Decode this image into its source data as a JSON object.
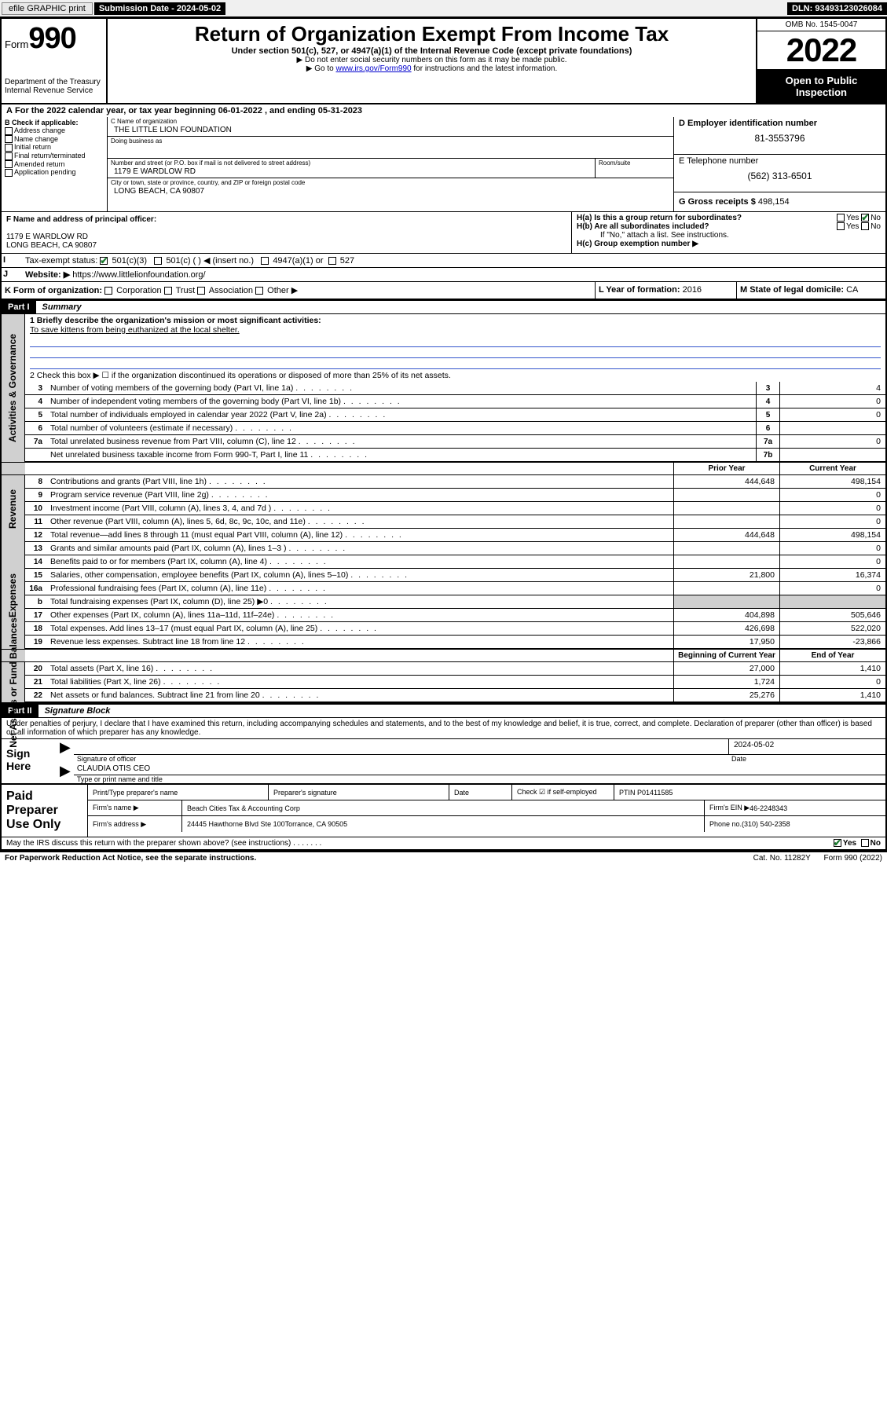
{
  "topbar": {
    "efile_btn": "efile GRAPHIC print",
    "sub_date_label": "Submission Date - 2024-05-02",
    "dln": "DLN: 93493123026084"
  },
  "header": {
    "form_prefix": "Form",
    "form_num": "990",
    "dept": "Department of the Treasury",
    "irs": "Internal Revenue Service",
    "title": "Return of Organization Exempt From Income Tax",
    "sub1": "Under section 501(c), 527, or 4947(a)(1) of the Internal Revenue Code (except private foundations)",
    "sub2": "▶ Do not enter social security numbers on this form as it may be made public.",
    "sub3_pre": "▶ Go to ",
    "sub3_link": "www.irs.gov/Form990",
    "sub3_post": " for instructions and the latest information.",
    "omb": "OMB No. 1545-0047",
    "year": "2022",
    "open": "Open to Public Inspection"
  },
  "period": {
    "text": "For the 2022 calendar year, or tax year beginning 06-01-2022   , and ending 05-31-2023"
  },
  "colB": {
    "label": "B Check if applicable:",
    "opts": [
      "Address change",
      "Name change",
      "Initial return",
      "Final return/terminated",
      "Amended return",
      "Application pending"
    ]
  },
  "colC": {
    "name_label": "C Name of organization",
    "name": "THE LITTLE LION FOUNDATION",
    "dba_label": "Doing business as",
    "dba": "",
    "addr_label": "Number and street (or P.O. box if mail is not delivered to street address)",
    "room_label": "Room/suite",
    "addr": "1179 E WARDLOW RD",
    "city_label": "City or town, state or province, country, and ZIP or foreign postal code",
    "city": "LONG BEACH, CA  90807"
  },
  "colD": {
    "ein_label": "D Employer identification number",
    "ein": "81-3553796",
    "tel_label": "E Telephone number",
    "tel": "(562) 313-6501",
    "gross_label": "G Gross receipts $",
    "gross": "498,154"
  },
  "lineF": {
    "label": "F Name and address of principal officer:",
    "addr1": "1179 E WARDLOW RD",
    "addr2": "LONG BEACH, CA  90807"
  },
  "lineH": {
    "a": "H(a)  Is this a group return for subordinates?",
    "b": "H(b)  Are all subordinates included?",
    "b_note": "If \"No,\" attach a list. See instructions.",
    "c": "H(c)  Group exemption number ▶",
    "yes": "Yes",
    "no": "No"
  },
  "lineI": {
    "label": "Tax-exempt status:",
    "c3": "501(c)(3)",
    "c": "501(c) (  ) ◀ (insert no.)",
    "a1": "4947(a)(1) or",
    "s527": "527"
  },
  "lineJ": {
    "label": "Website: ▶",
    "val": "https://www.littlelionfoundation.org/"
  },
  "lineK": {
    "label": "K Form of organization:",
    "opts": [
      "Corporation",
      "Trust",
      "Association",
      "Other ▶"
    ]
  },
  "lineL": {
    "label": "L Year of formation:",
    "val": "2016"
  },
  "lineM": {
    "label": "M State of legal domicile:",
    "val": "CA"
  },
  "part1": {
    "hdr": "Part I",
    "title": "Summary",
    "q1_label": "1  Briefly describe the organization's mission or most significant activities:",
    "q1_val": "To save kittens from being euthanized at the local shelter.",
    "q2": "2   Check this box ▶ ☐  if the organization discontinued its operations or disposed of more than 25% of its net assets.",
    "rows_gov": [
      {
        "ln": "3",
        "desc": "Number of voting members of the governing body (Part VI, line 1a)",
        "box": "3",
        "v": "4"
      },
      {
        "ln": "4",
        "desc": "Number of independent voting members of the governing body (Part VI, line 1b)",
        "box": "4",
        "v": "0"
      },
      {
        "ln": "5",
        "desc": "Total number of individuals employed in calendar year 2022 (Part V, line 2a)",
        "box": "5",
        "v": "0"
      },
      {
        "ln": "6",
        "desc": "Total number of volunteers (estimate if necessary)",
        "box": "6",
        "v": ""
      },
      {
        "ln": "7a",
        "desc": "Total unrelated business revenue from Part VIII, column (C), line 12",
        "box": "7a",
        "v": "0"
      },
      {
        "ln": "",
        "desc": "Net unrelated business taxable income from Form 990-T, Part I, line 11",
        "box": "7b",
        "v": ""
      }
    ],
    "prior": "Prior Year",
    "current": "Current Year",
    "rows_rev": [
      {
        "ln": "8",
        "desc": "Contributions and grants (Part VIII, line 1h)",
        "p": "444,648",
        "c": "498,154"
      },
      {
        "ln": "9",
        "desc": "Program service revenue (Part VIII, line 2g)",
        "p": "",
        "c": "0"
      },
      {
        "ln": "10",
        "desc": "Investment income (Part VIII, column (A), lines 3, 4, and 7d )",
        "p": "",
        "c": "0"
      },
      {
        "ln": "11",
        "desc": "Other revenue (Part VIII, column (A), lines 5, 6d, 8c, 9c, 10c, and 11e)",
        "p": "",
        "c": "0"
      },
      {
        "ln": "12",
        "desc": "Total revenue—add lines 8 through 11 (must equal Part VIII, column (A), line 12)",
        "p": "444,648",
        "c": "498,154"
      }
    ],
    "rows_exp": [
      {
        "ln": "13",
        "desc": "Grants and similar amounts paid (Part IX, column (A), lines 1–3 )",
        "p": "",
        "c": "0"
      },
      {
        "ln": "14",
        "desc": "Benefits paid to or for members (Part IX, column (A), line 4)",
        "p": "",
        "c": "0"
      },
      {
        "ln": "15",
        "desc": "Salaries, other compensation, employee benefits (Part IX, column (A), lines 5–10)",
        "p": "21,800",
        "c": "16,374"
      },
      {
        "ln": "16a",
        "desc": "Professional fundraising fees (Part IX, column (A), line 11e)",
        "p": "",
        "c": "0"
      },
      {
        "ln": "b",
        "desc": "Total fundraising expenses (Part IX, column (D), line 25) ▶0",
        "p": "grey",
        "c": "grey"
      },
      {
        "ln": "17",
        "desc": "Other expenses (Part IX, column (A), lines 11a–11d, 11f–24e)",
        "p": "404,898",
        "c": "505,646"
      },
      {
        "ln": "18",
        "desc": "Total expenses. Add lines 13–17 (must equal Part IX, column (A), line 25)",
        "p": "426,698",
        "c": "522,020"
      },
      {
        "ln": "19",
        "desc": "Revenue less expenses. Subtract line 18 from line 12",
        "p": "17,950",
        "c": "-23,866"
      }
    ],
    "begin": "Beginning of Current Year",
    "end": "End of Year",
    "rows_net": [
      {
        "ln": "20",
        "desc": "Total assets (Part X, line 16)",
        "p": "27,000",
        "c": "1,410"
      },
      {
        "ln": "21",
        "desc": "Total liabilities (Part X, line 26)",
        "p": "1,724",
        "c": "0"
      },
      {
        "ln": "22",
        "desc": "Net assets or fund balances. Subtract line 21 from line 20",
        "p": "25,276",
        "c": "1,410"
      }
    ],
    "side_gov": "Activities & Governance",
    "side_rev": "Revenue",
    "side_exp": "Expenses",
    "side_net": "Net Assets or Fund Balances"
  },
  "part2": {
    "hdr": "Part II",
    "title": "Signature Block",
    "decl": "Under penalties of perjury, I declare that I have examined this return, including accompanying schedules and statements, and to the best of my knowledge and belief, it is true, correct, and complete. Declaration of preparer (other than officer) is based on all information of which preparer has any knowledge.",
    "sign_here": "Sign Here",
    "sig_officer": "Signature of officer",
    "date_lbl": "Date",
    "date_val": "2024-05-02",
    "name_val": "CLAUDIA OTIS CEO",
    "name_lbl": "Type or print name and title"
  },
  "paid": {
    "hdr": "Paid Preparer Use Only",
    "r1": [
      "Print/Type preparer's name",
      "Preparer's signature",
      "Date",
      "Check ☑ if self-employed",
      "PTIN P01411585"
    ],
    "r2_l": "Firm's name    ▶",
    "r2_v": "Beach Cities Tax & Accounting Corp",
    "r2_ein_l": "Firm's EIN ▶",
    "r2_ein": "46-2248343",
    "r3_l": "Firm's address ▶",
    "r3_v": "24445 Hawthorne Blvd Ste 100",
    "r3_ph_l": "Phone no.",
    "r3_ph": "(310) 540-2358",
    "r3_v2": "Torrance, CA  90505"
  },
  "bottom": {
    "q": "May the IRS discuss this return with the preparer shown above? (see instructions)",
    "yes": "Yes",
    "no": "No",
    "pwk": "For Paperwork Reduction Act Notice, see the separate instructions.",
    "cat": "Cat. No. 11282Y",
    "form": "Form 990 (2022)"
  },
  "colors": {
    "link": "#0000cc",
    "check_green": "#1a7a2e",
    "grey_bg": "#d0d0d0",
    "blue_line": "#3355cc"
  }
}
